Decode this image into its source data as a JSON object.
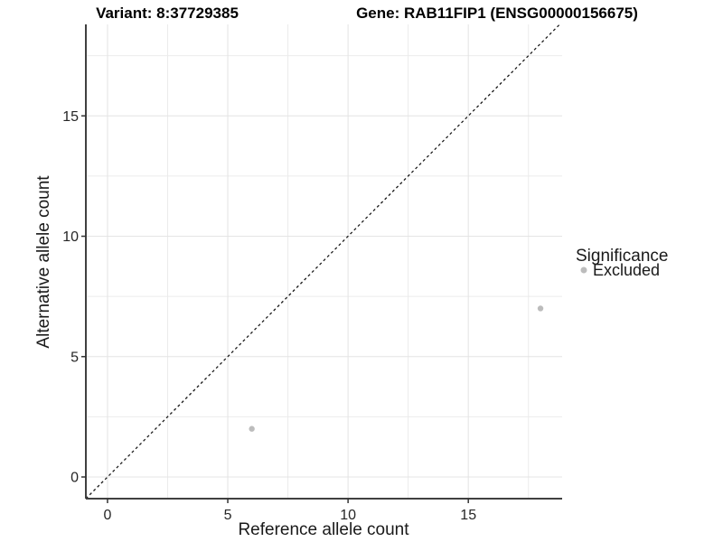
{
  "chart_data": {
    "type": "scatter",
    "title_left": "Variant: 8:37729385",
    "title_right": "Gene: RAB11FIP1 (ENSG00000156675)",
    "xlabel": "Reference allele count",
    "ylabel": "Alternative allele count",
    "x_ticks": [
      0,
      5,
      10,
      15
    ],
    "y_ticks": [
      0,
      5,
      10,
      15
    ],
    "xlim": [
      -0.9,
      18.9
    ],
    "ylim": [
      -0.9,
      18.8
    ],
    "grid": "major and minor gridlines, white background",
    "points": [
      {
        "x": 6,
        "y": 2,
        "series": "Excluded"
      },
      {
        "x": 18,
        "y": 7,
        "series": "Excluded"
      }
    ],
    "identity_line": {
      "type": "y=x",
      "style": "dashed"
    },
    "legend": {
      "title": "Significance",
      "position": "right",
      "items": [
        {
          "label": "Excluded",
          "color": "#bcbcbc",
          "marker": "circle"
        }
      ]
    },
    "colors": {
      "point": "#bcbcbc",
      "grid_major": "#e4e4e4",
      "grid_minor": "#ebebeb",
      "axis_line": "#404040",
      "tick_mark": "#333333",
      "dashed_line": "#1a1a1a",
      "text": "#1a1a1a",
      "background": "#ffffff"
    }
  }
}
